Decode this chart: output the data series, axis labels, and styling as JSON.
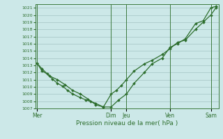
{
  "title": "",
  "xlabel": "Pression niveau de la mer( hPa )",
  "bg_color": "#cce8e8",
  "plot_bg_color": "#cce8e8",
  "line_color": "#2d6e2d",
  "grid_color": "#99bbbb",
  "ylim": [
    1007,
    1021.5
  ],
  "yticks": [
    1007,
    1008,
    1009,
    1010,
    1011,
    1012,
    1013,
    1014,
    1015,
    1016,
    1017,
    1018,
    1019,
    1020,
    1021
  ],
  "day_labels": [
    "Mer",
    "Dim",
    "Jeu",
    "Ven",
    "Sam"
  ],
  "day_tick_positions": [
    0,
    29,
    35,
    52,
    68
  ],
  "vline_positions": [
    0,
    29,
    35,
    52,
    68
  ],
  "series1_x": [
    0,
    2,
    4,
    6,
    8,
    10,
    12,
    14,
    17,
    19,
    21,
    23,
    26,
    29,
    31,
    33,
    35,
    38,
    42,
    45,
    49,
    52,
    55,
    58,
    62,
    65,
    68,
    70
  ],
  "series1_y": [
    1013.3,
    1012.2,
    1011.8,
    1011.1,
    1010.5,
    1010.1,
    1009.5,
    1009.0,
    1008.5,
    1008.2,
    1008.0,
    1007.7,
    1007.2,
    1009.0,
    1009.5,
    1010.2,
    1011.0,
    1012.2,
    1013.2,
    1013.7,
    1014.5,
    1015.3,
    1016.2,
    1016.5,
    1018.0,
    1019.0,
    1020.0,
    1021.0
  ],
  "series2_x": [
    0,
    2,
    5,
    8,
    11,
    14,
    17,
    20,
    23,
    26,
    29,
    32,
    35,
    38,
    42,
    45,
    49,
    52,
    55,
    58,
    62,
    65,
    68,
    70
  ],
  "series2_y": [
    1013.3,
    1012.5,
    1011.5,
    1011.0,
    1010.3,
    1009.5,
    1009.0,
    1008.3,
    1007.5,
    1007.2,
    1007.2,
    1008.2,
    1009.0,
    1010.5,
    1012.0,
    1013.2,
    1014.0,
    1015.5,
    1016.0,
    1016.7,
    1018.8,
    1019.2,
    1021.0,
    1021.2
  ]
}
